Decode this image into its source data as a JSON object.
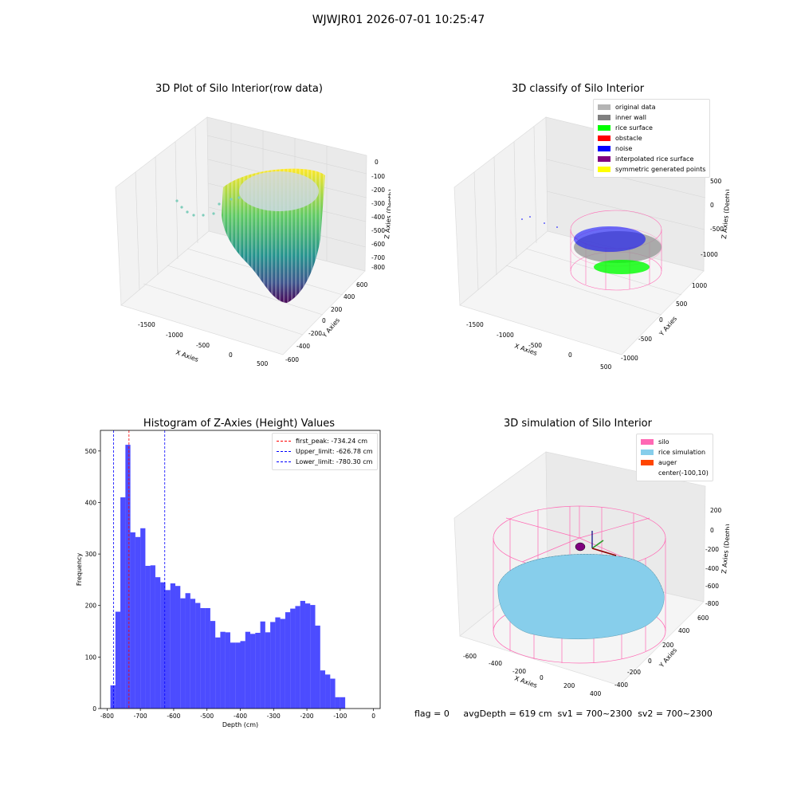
{
  "suptitle": "WJWJR01 2026-07-01 10:25:47",
  "panel1": {
    "title": "3D Plot of Silo Interior(row data)",
    "xlabel": "X Axies",
    "ylabel": "Y Axies",
    "zlabel": "Z Axies (Depth)",
    "xticks": [
      "-1500",
      "-1000",
      "-500",
      "0",
      "500"
    ],
    "yticks": [
      "-600",
      "-400",
      "-200",
      "0",
      "200",
      "400",
      "600"
    ],
    "zticks": [
      "0",
      "-100",
      "-200",
      "-300",
      "-400",
      "-500",
      "-600",
      "-700",
      "-800"
    ]
  },
  "panel2": {
    "title": "3D classify of Silo Interior",
    "xlabel": "X Axies",
    "ylabel": "Y Axies",
    "zlabel": "Z Axies (Depth)",
    "xticks": [
      "-1500",
      "-1000",
      "-500",
      "0",
      "500"
    ],
    "yticks": [
      "-1000",
      "-500",
      "0",
      "500",
      "1000"
    ],
    "zticks": [
      "500",
      "0",
      "-500",
      "-1000"
    ],
    "legend": [
      {
        "label": "original data",
        "color": "#b4b4b4"
      },
      {
        "label": "inner wall",
        "color": "#808080"
      },
      {
        "label": "rice surface",
        "color": "#00ff00"
      },
      {
        "label": "obstacle",
        "color": "#ff0000"
      },
      {
        "label": "noise",
        "color": "#0000ff"
      },
      {
        "label": "interpolated rice surface",
        "color": "#800080"
      },
      {
        "label": "symmetric generated points",
        "color": "#ffff00"
      }
    ]
  },
  "panel4": {
    "title": "3D simulation of Silo Interior",
    "xlabel": "X Axies",
    "ylabel": "Y Axies",
    "zlabel": "Z Axies (Depth)",
    "xticks": [
      "-600",
      "-400",
      "-200",
      "0",
      "200",
      "400"
    ],
    "yticks": [
      "-400",
      "-200",
      "0",
      "200",
      "400",
      "600"
    ],
    "zticks": [
      "200",
      "0",
      "-200",
      "-400",
      "-600",
      "-800"
    ],
    "legend": [
      {
        "label": "silo",
        "color": "#ff69b4"
      },
      {
        "label": "rice simulation",
        "color": "#87ceeb"
      },
      {
        "label": "auger",
        "color": "#ff4500"
      },
      {
        "label": "center(-100,10)",
        "color": ""
      }
    ]
  },
  "status": "flag = 0     avgDepth = 619 cm  sv1 = 700~2300  sv2 = 700~2300",
  "chart_data": {
    "type": "bar",
    "title": "Histogram of Z-Axies (Height) Values",
    "xlabel": "Depth (cm)",
    "ylabel": "Frequency",
    "xlim": [
      -820,
      20
    ],
    "ylim": [
      0,
      540
    ],
    "xticks": [
      -800,
      -700,
      -600,
      -500,
      -400,
      -300,
      -200,
      -100,
      0
    ],
    "yticks": [
      0,
      100,
      200,
      300,
      400,
      500
    ],
    "bin_start": -790,
    "bin_width": 15,
    "values": [
      45,
      188,
      410,
      512,
      342,
      333,
      350,
      277,
      278,
      255,
      245,
      230,
      243,
      238,
      214,
      224,
      213,
      205,
      195,
      195,
      170,
      138,
      149,
      148,
      128,
      128,
      131,
      149,
      145,
      147,
      169,
      148,
      168,
      177,
      174,
      187,
      194,
      199,
      209,
      204,
      201,
      161,
      74,
      66,
      58,
      22,
      22
    ],
    "color": "#0000ff",
    "vlines": [
      {
        "label": "first_peak: -734.24 cm",
        "x": -734.24,
        "color": "#ff0000"
      },
      {
        "label": "Upper_limit: -626.78 cm",
        "x": -626.78,
        "color": "#0000ff"
      },
      {
        "label": "Lower_limit: -780.30 cm",
        "x": -780.3,
        "color": "#0000ff"
      }
    ]
  }
}
